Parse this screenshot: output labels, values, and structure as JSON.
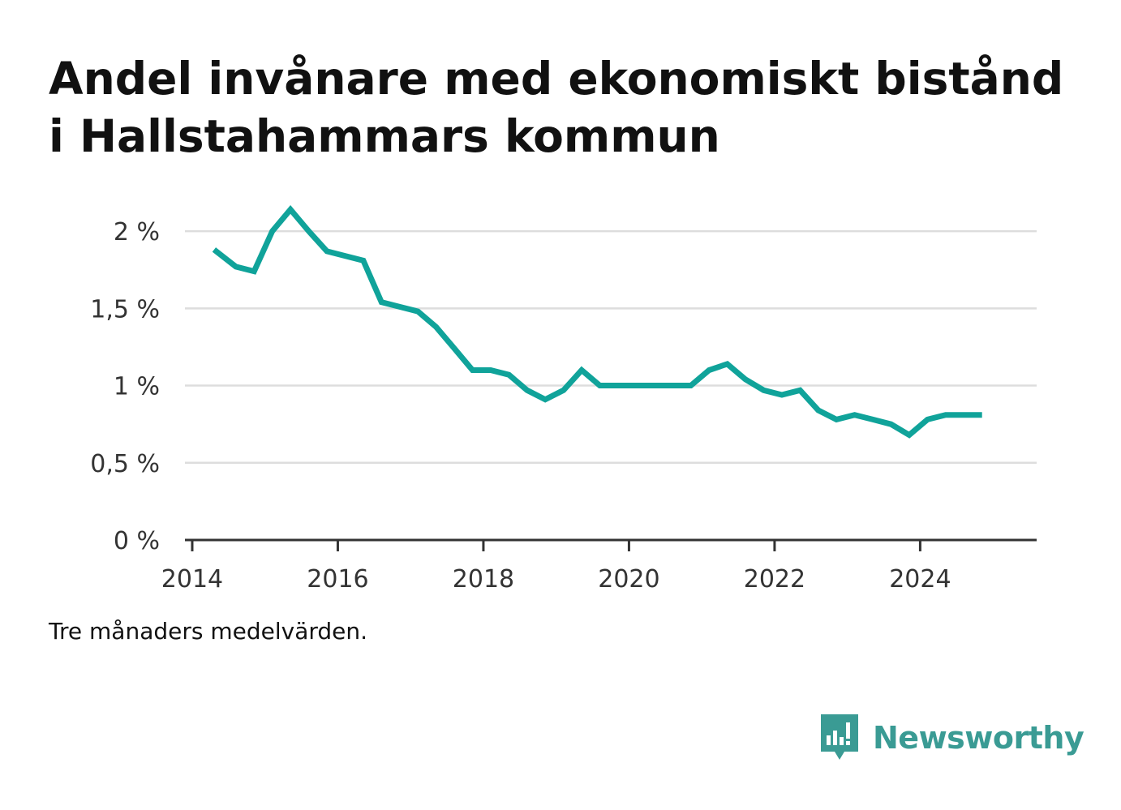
{
  "title": "Andel invånare med ekonomiskt bistånd i Hallstahammars kommun",
  "note": "Tre månaders medelvärden.",
  "brand": {
    "name": "Newsworthy",
    "icon": "bar-chart-speech-bubble-icon",
    "color": "#3a9b94"
  },
  "chart_data": {
    "type": "line",
    "color": "#10a39a",
    "grid": true,
    "ylim": [
      0,
      2.2
    ],
    "xlim": [
      2013.9,
      2025.6
    ],
    "yticks": [
      {
        "value": 0,
        "label": "0 %"
      },
      {
        "value": 0.5,
        "label": "0,5 %"
      },
      {
        "value": 1,
        "label": "1 %"
      },
      {
        "value": 1.5,
        "label": "1,5 %"
      },
      {
        "value": 2,
        "label": "2 %"
      }
    ],
    "xticks": [
      {
        "value": 2014,
        "label": "2014"
      },
      {
        "value": 2016,
        "label": "2016"
      },
      {
        "value": 2018,
        "label": "2018"
      },
      {
        "value": 2020,
        "label": "2020"
      },
      {
        "value": 2022,
        "label": "2022"
      },
      {
        "value": 2024,
        "label": "2024"
      }
    ],
    "series": [
      {
        "x": [
          2014.3,
          2014.6,
          2014.85,
          2015.1,
          2015.35,
          2015.6,
          2015.85,
          2016.1,
          2016.35,
          2016.6,
          2016.85,
          2017.1,
          2017.35,
          2017.6,
          2017.85,
          2018.1,
          2018.35,
          2018.6,
          2018.85,
          2019.1,
          2019.35,
          2019.6,
          2019.85,
          2020.1,
          2020.35,
          2020.6,
          2020.85,
          2021.1,
          2021.35,
          2021.6,
          2021.85,
          2022.1,
          2022.35,
          2022.6,
          2022.85,
          2023.1,
          2023.35,
          2023.6,
          2023.85,
          2024.1,
          2024.35,
          2024.6,
          2024.85
        ],
        "y": [
          1.88,
          1.77,
          1.74,
          2.0,
          2.14,
          2.0,
          1.87,
          1.84,
          1.81,
          1.54,
          1.51,
          1.48,
          1.38,
          1.24,
          1.1,
          1.1,
          1.07,
          0.97,
          0.91,
          0.97,
          1.1,
          1.0,
          1.0,
          1.0,
          1.0,
          1.0,
          1.0,
          1.1,
          1.14,
          1.04,
          0.97,
          0.94,
          0.97,
          0.84,
          0.78,
          0.81,
          0.78,
          0.75,
          0.68,
          0.78,
          0.81,
          0.81,
          0.81
        ]
      }
    ]
  }
}
